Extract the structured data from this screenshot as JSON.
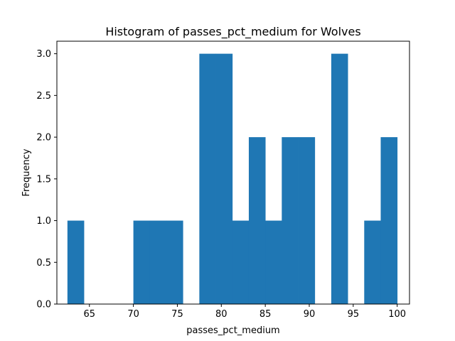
{
  "chart_data": {
    "type": "bar",
    "title": "Histogram of passes_pct_medium for Wolves",
    "xlabel": "passes_pct_medium",
    "ylabel": "Frequency",
    "xlim": [
      61.3,
      101.4
    ],
    "ylim": [
      0,
      3.15
    ],
    "xticks": [
      65,
      70,
      75,
      80,
      85,
      90,
      95,
      100
    ],
    "yticks": [
      0.0,
      0.5,
      1.0,
      1.5,
      2.0,
      2.5,
      3.0
    ],
    "xtick_labels": [
      "65",
      "70",
      "75",
      "80",
      "85",
      "90",
      "95",
      "100"
    ],
    "ytick_labels": [
      "0.0",
      "0.5",
      "1.0",
      "1.5",
      "2.0",
      "2.5",
      "3.0"
    ],
    "bin_start": 62.5,
    "bin_width": 1.875,
    "bins": 20,
    "values": [
      1,
      0,
      0,
      0,
      1,
      1,
      1,
      0,
      3,
      3,
      1,
      2,
      1,
      2,
      2,
      0,
      3,
      0,
      1,
      2
    ],
    "bar_color": "#1f77b4",
    "grid": false,
    "legend": "none"
  }
}
